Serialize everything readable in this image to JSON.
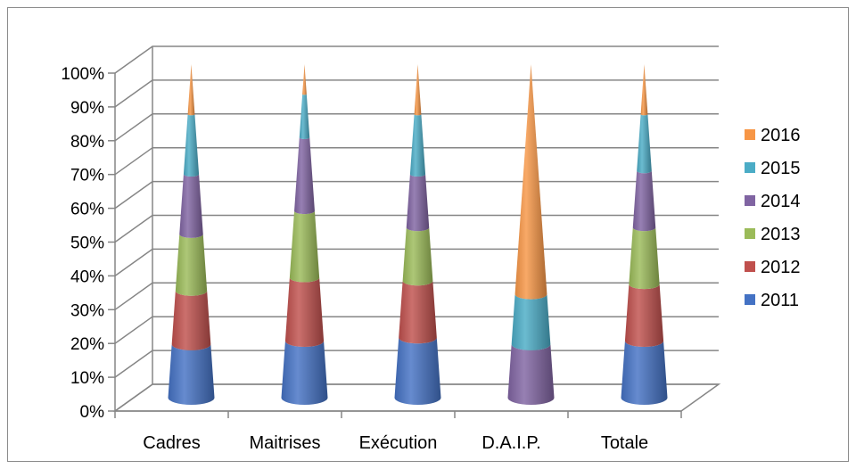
{
  "chart_data": {
    "type": "bar",
    "shape": "cone",
    "stacking": "percent",
    "categories": [
      "Cadres",
      "Maitrises",
      "Exécution",
      "D.A.I.P.",
      "Totale"
    ],
    "y_ticks": [
      "0%",
      "10%",
      "20%",
      "30%",
      "40%",
      "50%",
      "60%",
      "70%",
      "80%",
      "90%",
      "100%"
    ],
    "ylim": [
      0,
      100
    ],
    "legend_position": "right",
    "series": [
      {
        "name": "2011",
        "color": "#4472c4",
        "values": [
          16,
          17,
          18,
          0,
          17
        ]
      },
      {
        "name": "2012",
        "color": "#c0504d",
        "values": [
          16,
          19,
          17,
          0,
          17
        ]
      },
      {
        "name": "2013",
        "color": "#9bbb59",
        "values": [
          17,
          20,
          16,
          0,
          17
        ]
      },
      {
        "name": "2014",
        "color": "#8064a2",
        "values": [
          18,
          22,
          16,
          16,
          17
        ]
      },
      {
        "name": "2015",
        "color": "#4bacc6",
        "values": [
          18,
          13,
          18,
          15,
          17
        ]
      },
      {
        "name": "2016",
        "color": "#f79646",
        "values": [
          15,
          9,
          15,
          69,
          15
        ]
      }
    ]
  }
}
